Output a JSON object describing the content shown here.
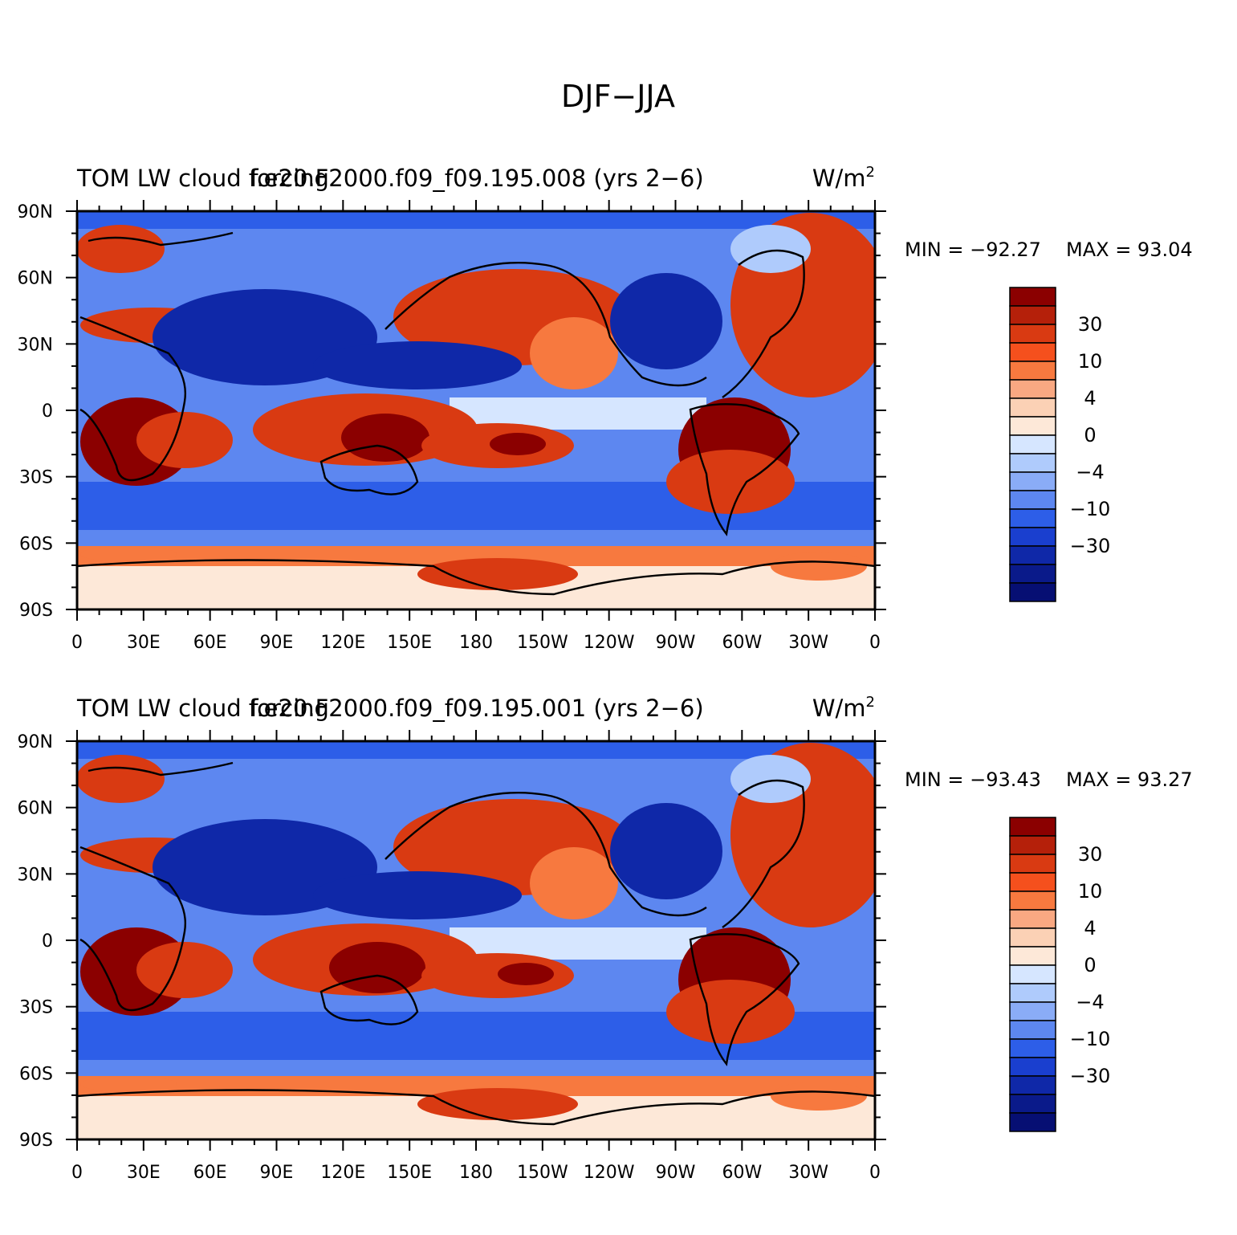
{
  "figure": {
    "title": "DJF−JJA"
  },
  "panels": [
    {
      "left_title": "TOM LW cloud forcing",
      "center_title": "f.e20.F2000.f09_f09.195.008 (yrs 2−6)",
      "units": "W/m",
      "units_superscript": "2",
      "min_label": "MIN = −92.27",
      "max_label": "MAX =  93.04",
      "stats": {
        "min": -92.27,
        "max": 93.04
      }
    },
    {
      "left_title": "TOM LW cloud forcing",
      "center_title": "f.e20.F2000.f09_f09.195.001 (yrs 2−6)",
      "units": "W/m",
      "units_superscript": "2",
      "min_label": "MIN = −93.43",
      "max_label": "MAX =  93.27",
      "stats": {
        "min": -93.43,
        "max": 93.27
      }
    }
  ],
  "map": {
    "projection": "cylindrical equidistant",
    "lon_range": [
      0,
      360
    ],
    "lat_range": [
      -90,
      90
    ],
    "lat_tick_labels": [
      "90N",
      "60N",
      "30N",
      "0",
      "30S",
      "60S",
      "90S"
    ],
    "lon_tick_labels": [
      "0",
      "30E",
      "60E",
      "90E",
      "120E",
      "150E",
      "180",
      "150W",
      "120W",
      "90W",
      "60W",
      "30W",
      "0"
    ]
  },
  "colorbar": {
    "labels": [
      "30",
      "10",
      "4",
      "0",
      "−4",
      "−10",
      "−30"
    ],
    "colors_top_to_bottom": [
      "#8b0000",
      "#b5200a",
      "#d93a12",
      "#f5501d",
      "#f7793f",
      "#f9a882",
      "#fbd1b5",
      "#fde8d8",
      "#d6e6ff",
      "#afcbfc",
      "#8aacf7",
      "#5d87f0",
      "#2d5ee8",
      "#1a3fcf",
      "#0f28a8",
      "#0a1a8a",
      "#060f73"
    ]
  },
  "chart_data": [
    {
      "type": "heatmap",
      "title": "f.e20.F2000.f09_f09.195.008 (yrs 2−6)",
      "variable": "TOM LW cloud forcing",
      "units": "W/m2",
      "min": -92.27,
      "max": 93.04,
      "xlim": [
        0,
        360
      ],
      "ylim": [
        -90,
        90
      ]
    },
    {
      "type": "heatmap",
      "title": "f.e20.F2000.f09_f09.195.001 (yrs 2−6)",
      "variable": "TOM LW cloud forcing",
      "units": "W/m2",
      "min": -93.43,
      "max": 93.27,
      "xlim": [
        0,
        360
      ],
      "ylim": [
        -90,
        90
      ]
    }
  ]
}
